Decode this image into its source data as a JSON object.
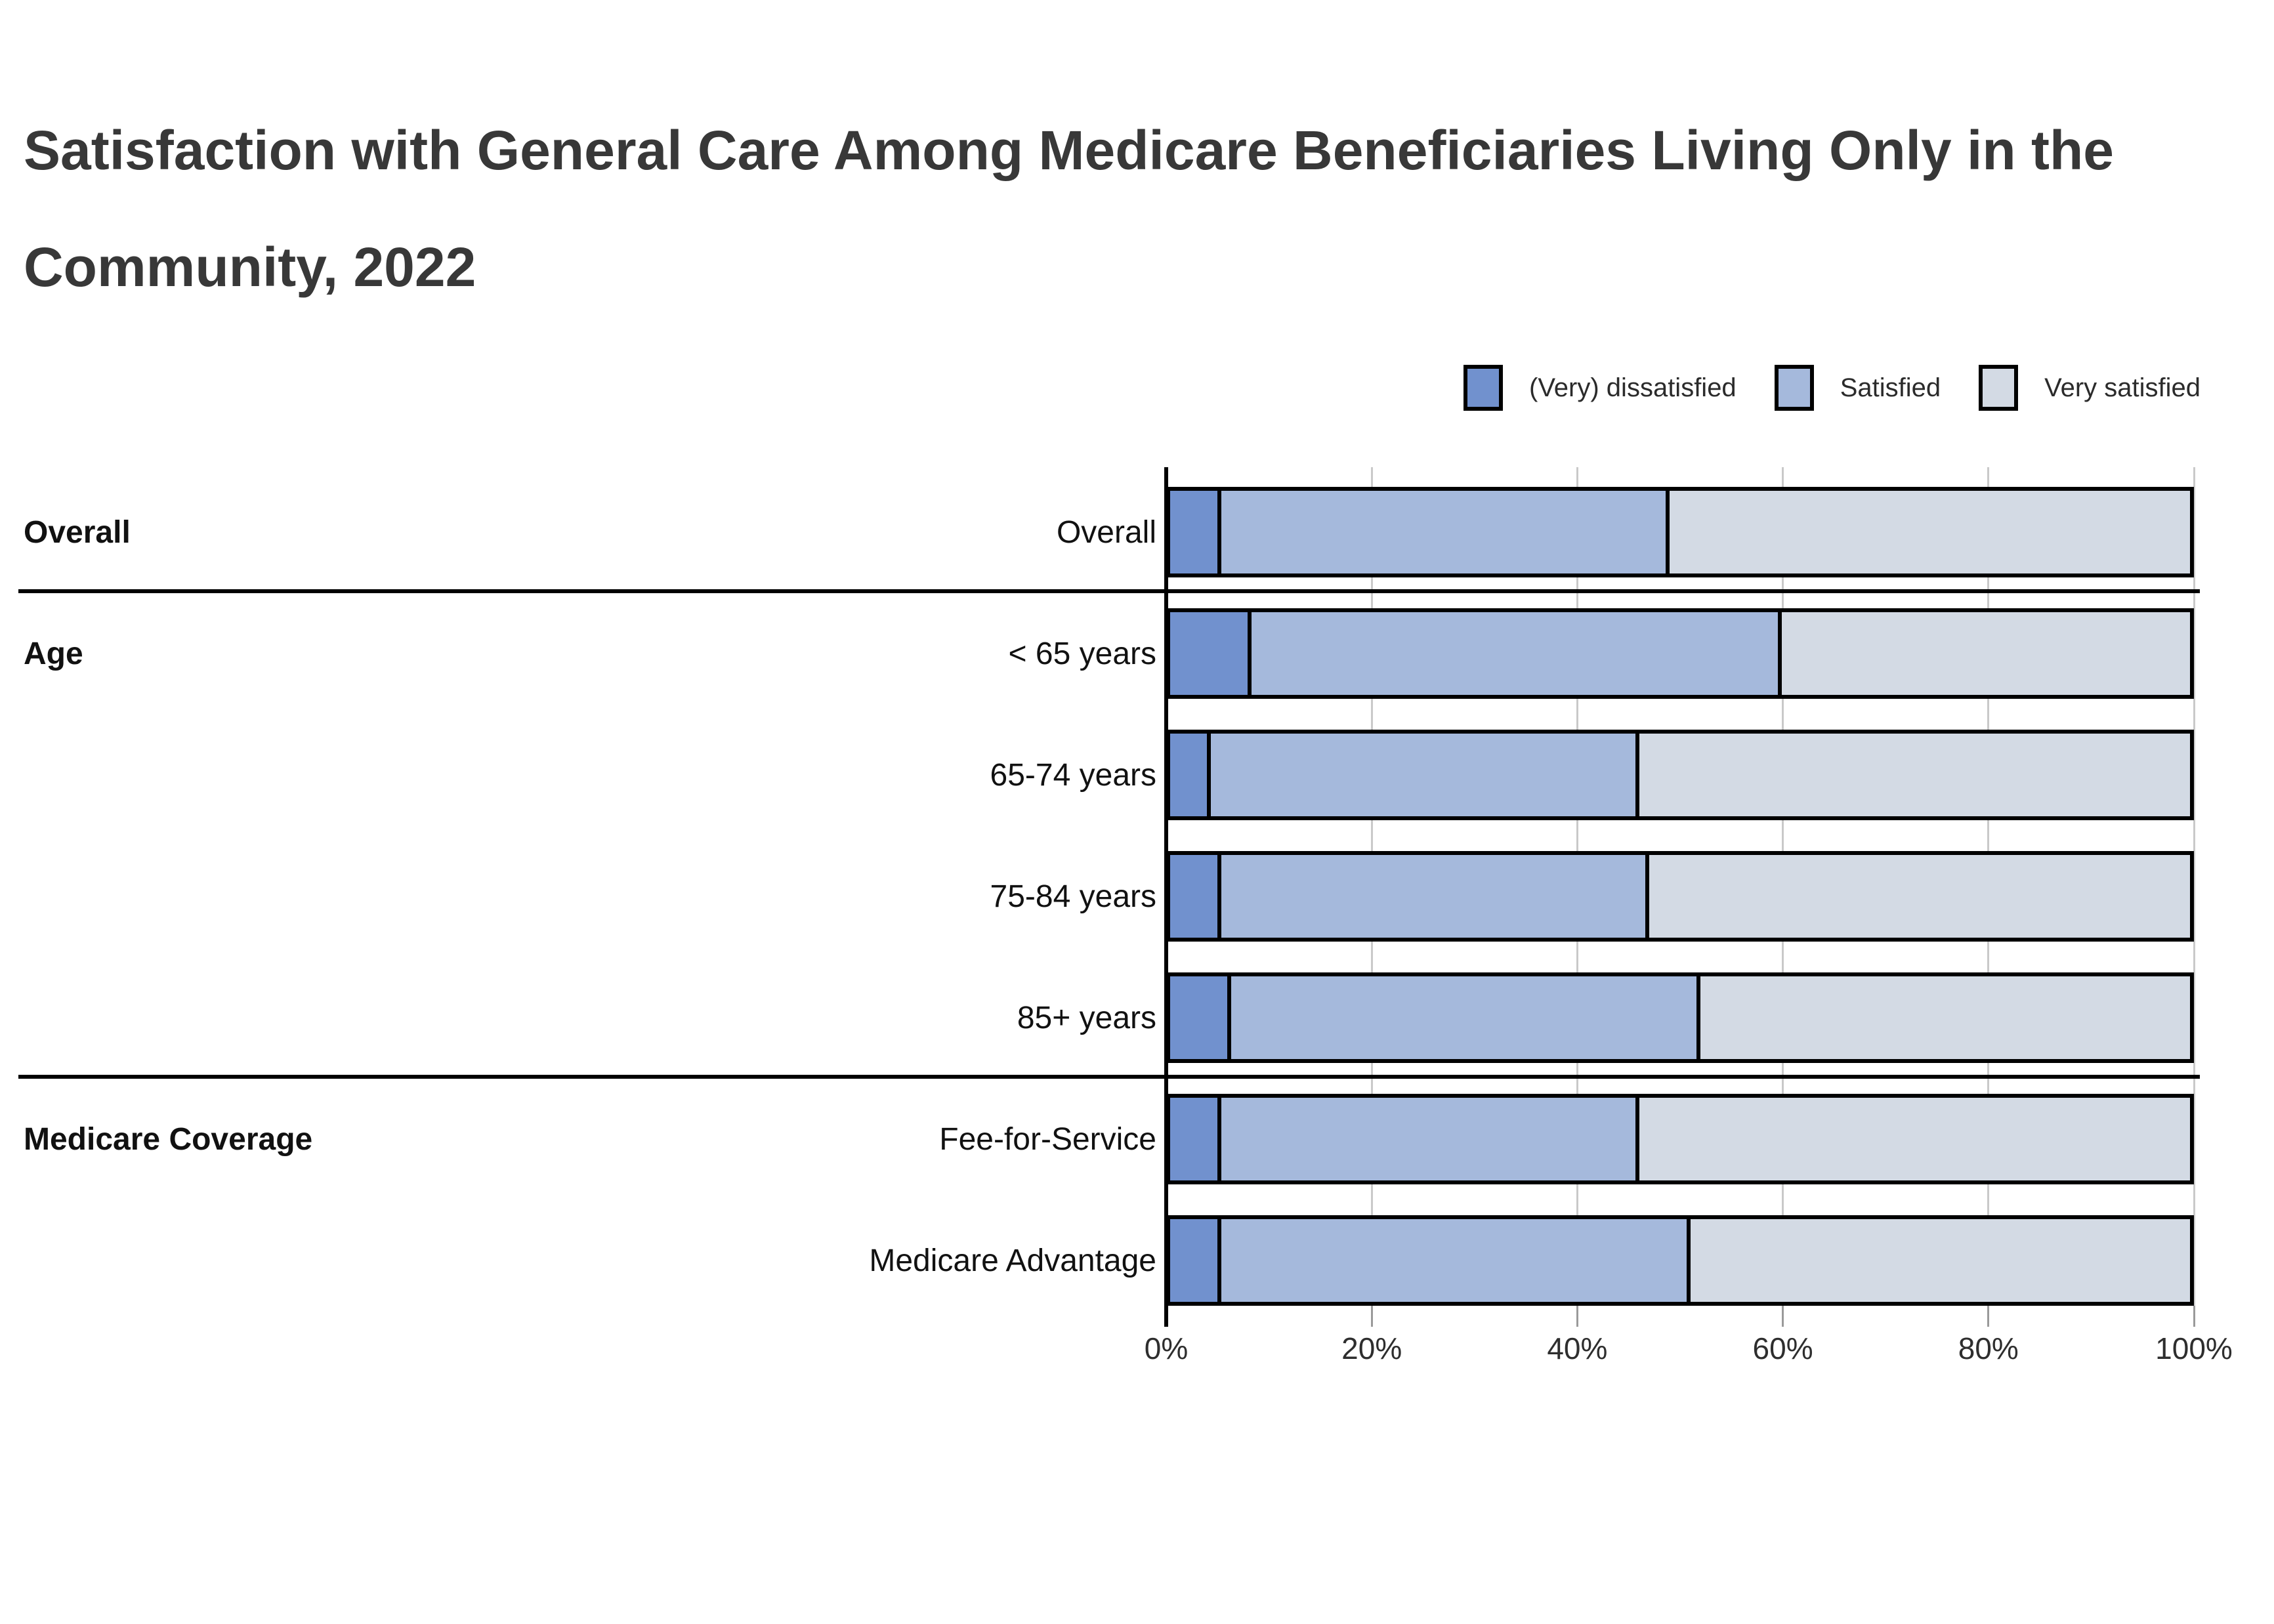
{
  "title": {
    "line1": "Satisfaction with General Care Among Medicare Beneficiaries Living Only in the",
    "line2": "Community, 2022"
  },
  "legend": [
    {
      "label": "(Very) dissatisfied",
      "color": "#7191CE"
    },
    {
      "label": "Satisfied",
      "color": "#A5B9DC"
    },
    {
      "label": "Very satisfied",
      "color": "#D3DAE4"
    }
  ],
  "chart_data": {
    "type": "bar",
    "orientation": "horizontal",
    "stacked": true,
    "units": "percent",
    "title": "Satisfaction with General Care Among Medicare Beneficiaries Living Only in the Community, 2022",
    "series_names": [
      "(Very) dissatisfied",
      "Satisfied",
      "Very satisfied"
    ],
    "series_colors": [
      "#7191CE",
      "#A5B9DC",
      "#D3DAE4"
    ],
    "groups": [
      {
        "group": "Overall",
        "rows": [
          {
            "label": "Overall",
            "values": [
              5,
              44,
              51
            ]
          }
        ]
      },
      {
        "group": "Age",
        "rows": [
          {
            "label": "< 65 years",
            "values": [
              8,
              52,
              40
            ]
          },
          {
            "label": "65-74 years",
            "values": [
              4,
              42,
              54
            ]
          },
          {
            "label": "75-84 years",
            "values": [
              5,
              42,
              53
            ]
          },
          {
            "label": "85+ years",
            "values": [
              6,
              46,
              48
            ]
          }
        ]
      },
      {
        "group": "Medicare Coverage",
        "rows": [
          {
            "label": "Fee-for-Service",
            "values": [
              5,
              41,
              54
            ]
          },
          {
            "label": "Medicare Advantage",
            "values": [
              5,
              46,
              49
            ]
          }
        ]
      }
    ],
    "x_ticks": [
      "0%",
      "20%",
      "40%",
      "60%",
      "80%",
      "100%"
    ],
    "xlim": [
      0,
      100
    ],
    "grid": true,
    "legend_position": "top-right"
  }
}
